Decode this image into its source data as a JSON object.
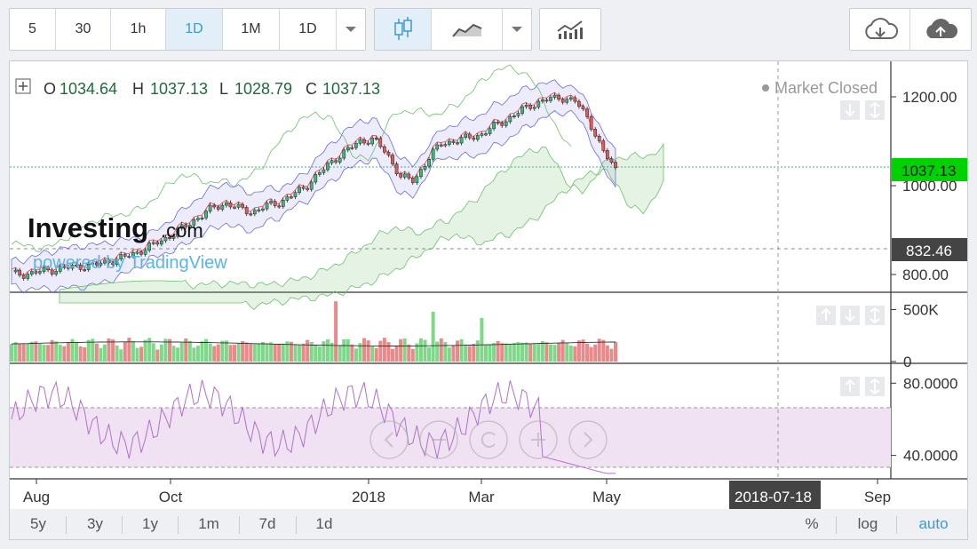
{
  "toolbar": {
    "intervals": [
      "5",
      "30",
      "1h",
      "1D",
      "1M",
      "1D"
    ],
    "active_interval": "1D",
    "icons": [
      "dropdown-icon",
      "candlestick-icon",
      "line-chart-icon",
      "dropdown-icon",
      "indicators-icon",
      "cloud-download-icon",
      "cloud-upload-icon"
    ]
  },
  "legend": {
    "o_label": "O",
    "o": "1034.64",
    "h_label": "H",
    "h": "1037.13",
    "l_label": "L",
    "l": "1028.79",
    "c_label": "C",
    "c": "1037.13"
  },
  "status": "Market Closed",
  "price_tags": {
    "last": "1037.13",
    "line": "832.46"
  },
  "brand": {
    "name": "Investing",
    "suffix": ".com",
    "powered": "powered by TradingView"
  },
  "date_tag": "2018-07-18",
  "colors": {
    "up": "#3cb878",
    "down": "#e05a5a",
    "bb": "#6a6adf",
    "ichimoku": "#6dbf6d",
    "rsi": "#b071c9",
    "accent": "#00c853"
  },
  "timeframes": [
    "5y",
    "3y",
    "1y",
    "1m",
    "7d",
    "1d"
  ],
  "scale_options": [
    "%",
    "log",
    "auto"
  ],
  "active_scale": "auto",
  "chart_data": [
    {
      "type": "candlestick",
      "title": "",
      "x": [
        "Aug",
        "Oct",
        "2018",
        "Mar",
        "May",
        "Sep"
      ],
      "ylim": [
        760,
        1280
      ],
      "y_ticks": [
        "800.00",
        "1000.00",
        "1200.00"
      ],
      "last_close": 1037.13,
      "close_series": [
        802,
        800,
        806,
        810,
        815,
        818,
        820,
        828,
        835,
        846,
        858,
        874,
        890,
        910,
        930,
        950,
        960,
        948,
        940,
        955,
        962,
        980,
        1000,
        1030,
        1058,
        1080,
        1100,
        1105,
        1070,
        1020,
        1010,
        1060,
        1095,
        1100,
        1108,
        1115,
        1135,
        1150,
        1170,
        1185,
        1195,
        1198,
        1190,
        1150,
        1080,
        1037
      ],
      "overlays": [
        "Bollinger Bands",
        "Ichimoku Cloud",
        "Moving Average"
      ]
    },
    {
      "type": "bar",
      "title": "Volume",
      "y_ticks": [
        "0",
        "500K"
      ],
      "ylim": [
        0,
        650000
      ]
    },
    {
      "type": "line",
      "title": "RSI",
      "y_ticks": [
        "40.0000",
        "80.0000"
      ],
      "ylim": [
        28,
        90
      ],
      "bands": [
        30,
        70
      ]
    }
  ]
}
